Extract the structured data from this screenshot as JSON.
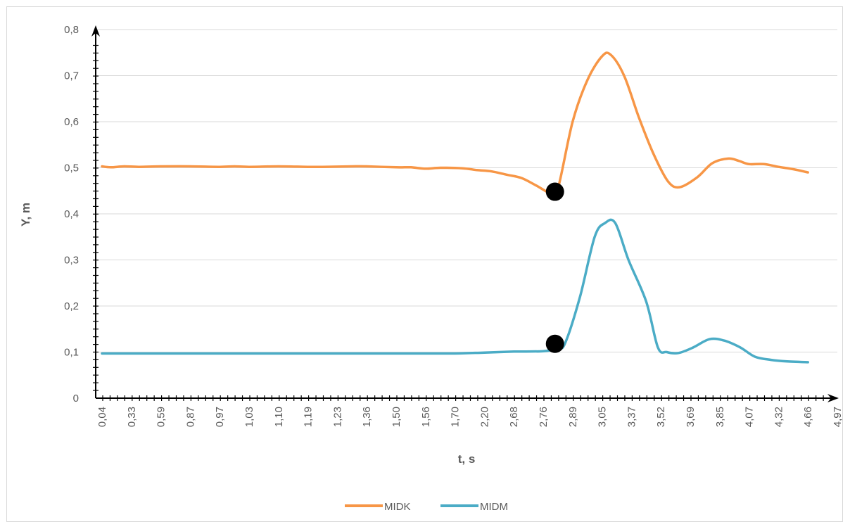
{
  "chart_data": {
    "type": "line",
    "title": "",
    "xlabel": "t, s",
    "ylabel": "Y, m",
    "ylim": [
      0,
      0.8
    ],
    "yticks": [
      "0",
      "0,1",
      "0,2",
      "0,3",
      "0,4",
      "0,5",
      "0,6",
      "0,7",
      "0,8"
    ],
    "categories": [
      "0,04",
      "0,33",
      "0,59",
      "0,87",
      "0,97",
      "1,03",
      "1,10",
      "1,19",
      "1,23",
      "1,36",
      "1,50",
      "1,56",
      "1,70",
      "2,20",
      "2,68",
      "2,76",
      "2,89",
      "3,05",
      "3,37",
      "3,52",
      "3,69",
      "3,85",
      "4,07",
      "4,32",
      "4,66",
      "4,97"
    ],
    "grid": true,
    "legend": "bottom",
    "series": [
      {
        "name": "MIDK",
        "color": "#f79646",
        "points": [
          [
            0.0,
            0.503
          ],
          [
            0.6,
            0.501
          ],
          [
            1.5,
            0.503
          ],
          [
            2.5,
            0.502
          ],
          [
            4.0,
            0.503
          ],
          [
            6.0,
            0.503
          ],
          [
            8.0,
            0.502
          ],
          [
            9.0,
            0.503
          ],
          [
            10.0,
            0.502
          ],
          [
            12.0,
            0.503
          ],
          [
            14.0,
            0.502
          ],
          [
            15.0,
            0.502
          ],
          [
            17.0,
            0.503
          ],
          [
            18.0,
            0.503
          ],
          [
            20.0,
            0.501
          ],
          [
            21.0,
            0.501
          ],
          [
            22.0,
            0.498
          ],
          [
            23.0,
            0.5
          ],
          [
            24.5,
            0.499
          ],
          [
            25.5,
            0.495
          ],
          [
            26.5,
            0.492
          ],
          [
            27.5,
            0.485
          ],
          [
            28.5,
            0.478
          ],
          [
            29.5,
            0.462
          ],
          [
            30.5,
            0.445
          ],
          [
            31.0,
            0.455
          ],
          [
            32.0,
            0.6
          ],
          [
            33.0,
            0.69
          ],
          [
            34.0,
            0.742
          ],
          [
            34.6,
            0.745
          ],
          [
            35.5,
            0.7
          ],
          [
            36.5,
            0.61
          ],
          [
            37.5,
            0.53
          ],
          [
            38.5,
            0.47
          ],
          [
            39.3,
            0.458
          ],
          [
            40.5,
            0.48
          ],
          [
            41.5,
            0.51
          ],
          [
            42.6,
            0.52
          ],
          [
            43.3,
            0.515
          ],
          [
            44.0,
            0.508
          ],
          [
            45.0,
            0.508
          ],
          [
            46.0,
            0.502
          ],
          [
            47.0,
            0.497
          ],
          [
            48.0,
            0.49
          ]
        ]
      },
      {
        "name": "MIDM",
        "color": "#4bacc6",
        "points": [
          [
            0.0,
            0.097
          ],
          [
            5.0,
            0.097
          ],
          [
            10.0,
            0.097
          ],
          [
            15.0,
            0.097
          ],
          [
            20.0,
            0.097
          ],
          [
            24.0,
            0.097
          ],
          [
            26.0,
            0.099
          ],
          [
            28.0,
            0.101
          ],
          [
            30.0,
            0.102
          ],
          [
            31.0,
            0.108
          ],
          [
            31.5,
            0.12
          ],
          [
            32.5,
            0.22
          ],
          [
            33.5,
            0.35
          ],
          [
            34.2,
            0.38
          ],
          [
            34.9,
            0.38
          ],
          [
            35.8,
            0.3
          ],
          [
            37.0,
            0.21
          ],
          [
            37.8,
            0.11
          ],
          [
            38.4,
            0.1
          ],
          [
            39.2,
            0.098
          ],
          [
            40.2,
            0.11
          ],
          [
            41.3,
            0.128
          ],
          [
            42.3,
            0.125
          ],
          [
            43.4,
            0.11
          ],
          [
            44.4,
            0.09
          ],
          [
            45.5,
            0.083
          ],
          [
            46.5,
            0.08
          ],
          [
            48.0,
            0.078
          ]
        ]
      }
    ],
    "markers": [
      {
        "series": "MIDK",
        "x": 30.8,
        "y": 0.448
      },
      {
        "series": "MIDM",
        "x": 30.8,
        "y": 0.118
      }
    ]
  }
}
